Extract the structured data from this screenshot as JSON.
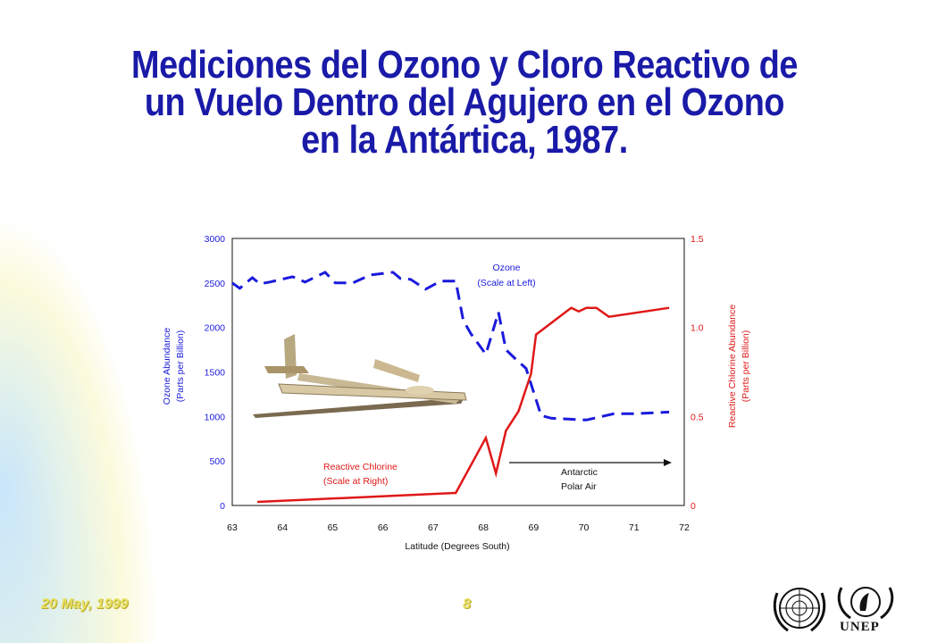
{
  "title": {
    "line1": "Mediciones del Ozono y Cloro Reactivo de",
    "line2": "un Vuelo Dentro del Agujero en el Ozono",
    "line3": "en la Antártica, 1987."
  },
  "footer": {
    "date": "20 May, 1999",
    "page": "8",
    "org": "UNEP"
  },
  "colors": {
    "title": "#1a1aa8",
    "ozone": "#1a1adc",
    "chlorine": "#e01818",
    "footer": "#e8e060"
  },
  "chart_data": {
    "type": "line",
    "xlabel": "Latitude (Degrees South)",
    "ylabel_left": [
      "Ozone Abundance",
      "(Parts per Billion)"
    ],
    "ylabel_right": [
      "Reactive Chlorine Abundance",
      "(Parts per Billion)"
    ],
    "xlim": [
      63,
      72
    ],
    "ylim_left": [
      0,
      3000
    ],
    "ylim_right": [
      0,
      1.5
    ],
    "x_ticks": [
      "63",
      "64",
      "65",
      "66",
      "67",
      "68",
      "69",
      "70",
      "71",
      "72"
    ],
    "y_ticks_left": [
      "0",
      "500",
      "1000",
      "1500",
      "2000",
      "2500",
      "3000"
    ],
    "y_ticks_right": [
      "0",
      "0.5",
      "1.0",
      "1.5"
    ],
    "grid": false,
    "annotations": {
      "ozone": [
        "Ozone",
        "(Scale at Left)"
      ],
      "chlorine": [
        "Reactive Chlorine",
        "(Scale at Right)"
      ],
      "polar": [
        "Antarctic",
        "Polar Air"
      ]
    },
    "series": [
      {
        "axis": "left",
        "style": "dashed",
        "color": "#1a1adc",
        "points": [
          [
            63.0,
            2500
          ],
          [
            63.15,
            2440
          ],
          [
            63.4,
            2560
          ],
          [
            63.55,
            2490
          ],
          [
            63.75,
            2510
          ],
          [
            64.2,
            2570
          ],
          [
            64.45,
            2510
          ],
          [
            64.85,
            2620
          ],
          [
            65.05,
            2500
          ],
          [
            65.4,
            2500
          ],
          [
            65.75,
            2590
          ],
          [
            66.2,
            2620
          ],
          [
            66.35,
            2550
          ],
          [
            66.55,
            2540
          ],
          [
            66.85,
            2430
          ],
          [
            67.15,
            2520
          ],
          [
            67.45,
            2520
          ],
          [
            67.6,
            2080
          ],
          [
            67.75,
            1930
          ],
          [
            68.05,
            1700
          ],
          [
            68.3,
            2170
          ],
          [
            68.45,
            1750
          ],
          [
            68.65,
            1640
          ],
          [
            68.85,
            1540
          ],
          [
            69.15,
            1010
          ],
          [
            69.35,
            980
          ],
          [
            69.7,
            970
          ],
          [
            70.05,
            960
          ],
          [
            70.6,
            1030
          ],
          [
            71.0,
            1030
          ],
          [
            71.7,
            1050
          ]
        ]
      },
      {
        "axis": "right",
        "style": "solid",
        "color": "#e01818",
        "points": [
          [
            63.5,
            0.02
          ],
          [
            67.45,
            0.07
          ],
          [
            68.05,
            0.38
          ],
          [
            68.25,
            0.18
          ],
          [
            68.45,
            0.42
          ],
          [
            68.7,
            0.53
          ],
          [
            68.95,
            0.74
          ],
          [
            69.05,
            0.96
          ],
          [
            69.75,
            1.11
          ],
          [
            69.9,
            1.09
          ],
          [
            70.05,
            1.11
          ],
          [
            70.25,
            1.11
          ],
          [
            70.5,
            1.06
          ],
          [
            71.7,
            1.11
          ]
        ]
      }
    ]
  }
}
